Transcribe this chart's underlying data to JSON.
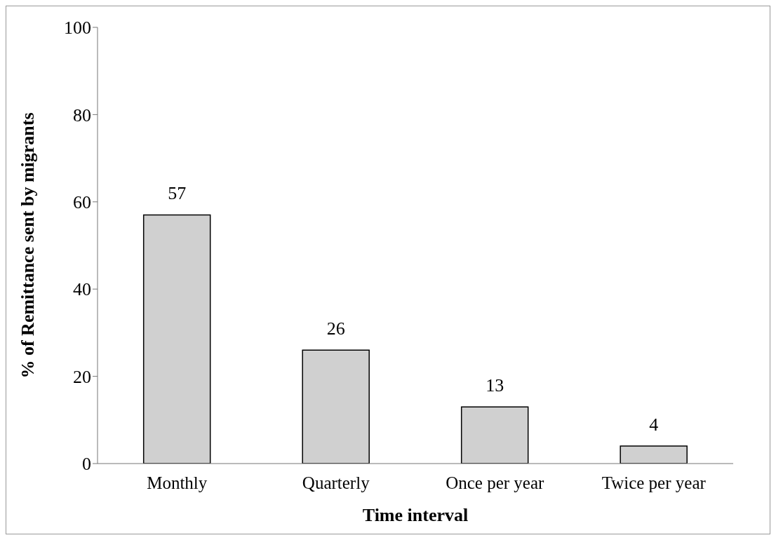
{
  "chart_data": {
    "type": "bar",
    "xlabel": "Time interval",
    "ylabel": "% of Remittance sent by migrants",
    "categories": [
      "Monthly",
      "Quarterly",
      "Once per year",
      "Twice per year"
    ],
    "values": [
      57,
      26,
      13,
      4
    ],
    "color": "#d0d0d0",
    "data_labels": true,
    "ylim": [
      0,
      100
    ],
    "yticks": [
      0,
      20,
      40,
      60,
      80,
      100
    ],
    "grid": false,
    "legend": false
  }
}
